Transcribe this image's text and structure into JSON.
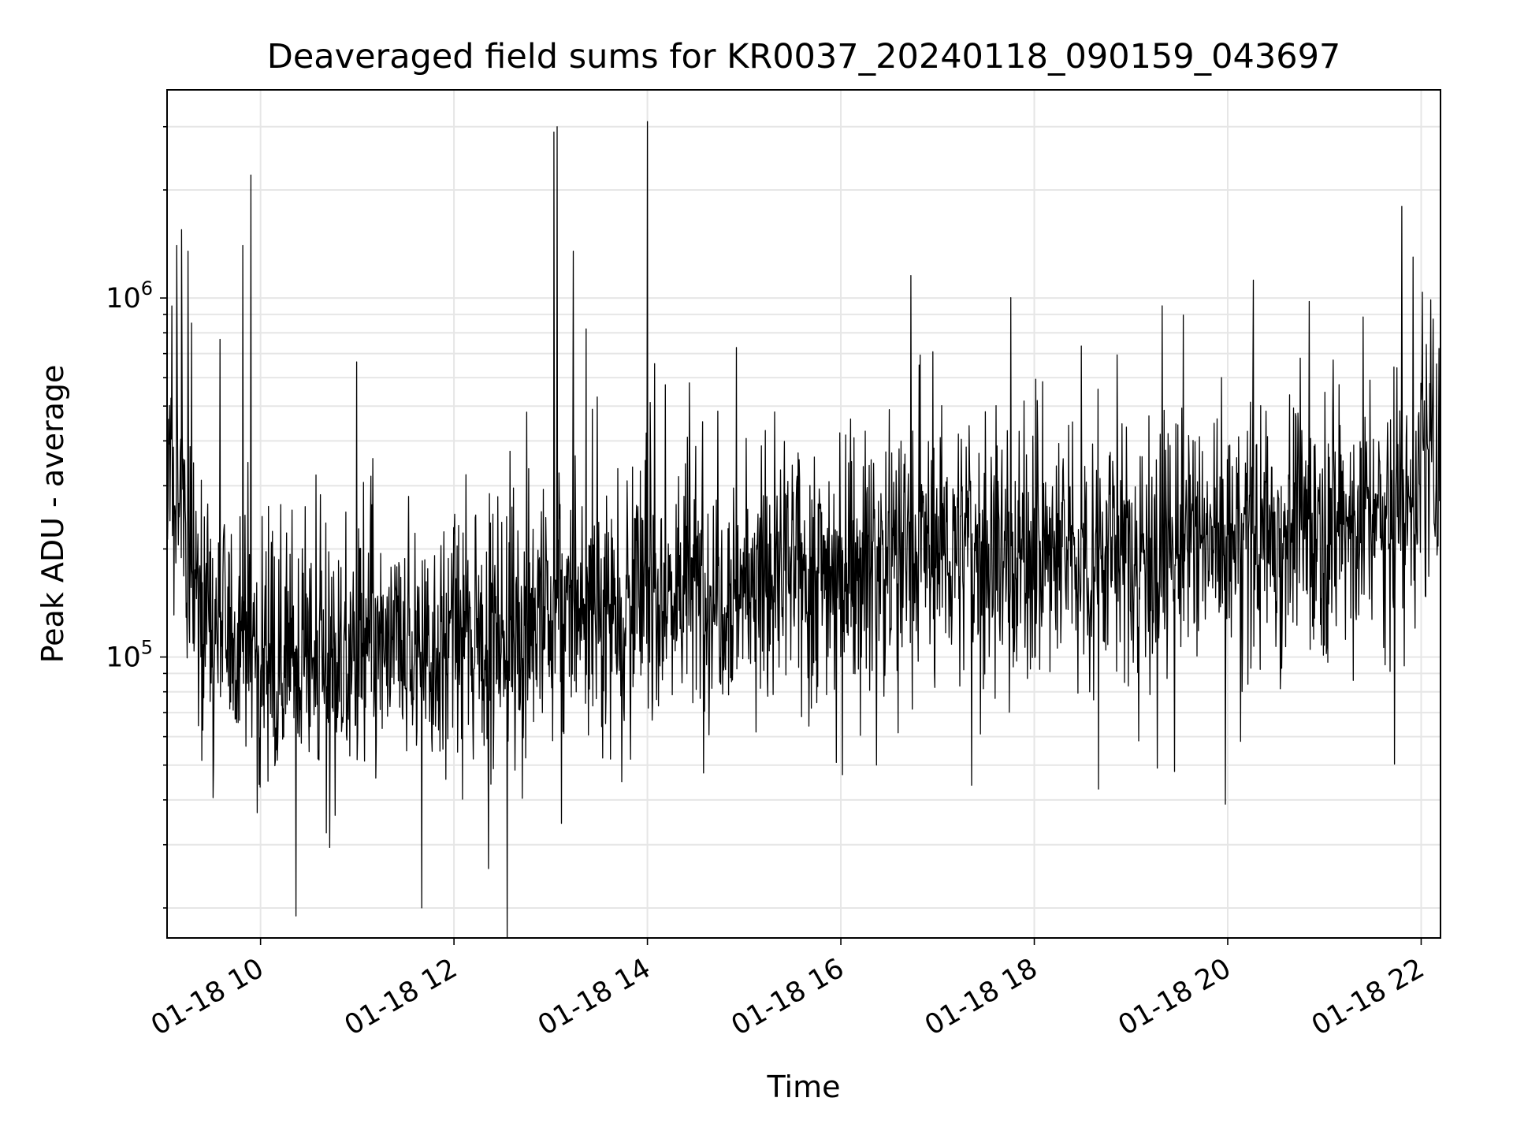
{
  "chart_data": {
    "type": "line",
    "title": "Deaveraged field sums for KR0037_20240118_090159_043697",
    "xlabel": "Time",
    "ylabel": "Peak ADU - average",
    "yscale": "log",
    "xlim": [
      "01-18 09:02",
      "01-18 22:12"
    ],
    "ylim": [
      16500,
      3800000
    ],
    "grid": true,
    "line_color": "#000000",
    "grid_color": "#e6e6e6",
    "x_ticks": [
      {
        "label": "01-18 10",
        "hour": 10
      },
      {
        "label": "01-18 12",
        "hour": 12
      },
      {
        "label": "01-18 14",
        "hour": 14
      },
      {
        "label": "01-18 16",
        "hour": 16
      },
      {
        "label": "01-18 18",
        "hour": 18
      },
      {
        "label": "01-18 20",
        "hour": 20
      },
      {
        "label": "01-18 22",
        "hour": 22
      }
    ],
    "y_ticks": [
      {
        "base": "10",
        "exp": "5",
        "value": 100000
      },
      {
        "base": "10",
        "exp": "6",
        "value": 1000000
      }
    ],
    "trend": [
      {
        "time": "01-18 09:02",
        "value": 320000
      },
      {
        "time": "01-18 09:30",
        "value": 120000
      },
      {
        "time": "01-18 10:30",
        "value": 95000
      },
      {
        "time": "01-18 12:00",
        "value": 110000
      },
      {
        "time": "01-18 13:00",
        "value": 130000
      },
      {
        "time": "01-18 14:00",
        "value": 150000
      },
      {
        "time": "01-18 15:00",
        "value": 160000
      },
      {
        "time": "01-18 16:00",
        "value": 180000
      },
      {
        "time": "01-18 17:00",
        "value": 205000
      },
      {
        "time": "01-18 18:00",
        "value": 190000
      },
      {
        "time": "01-18 19:00",
        "value": 200000
      },
      {
        "time": "01-18 20:00",
        "value": 210000
      },
      {
        "time": "01-18 21:00",
        "value": 235000
      },
      {
        "time": "01-18 21:45",
        "value": 250000
      },
      {
        "time": "01-18 22:12",
        "value": 380000
      }
    ],
    "spikes": [
      {
        "time": "01-18 09:05",
        "value": 950000
      },
      {
        "time": "01-18 09:08",
        "value": 1400000
      },
      {
        "time": "01-18 09:11",
        "value": 1550000
      },
      {
        "time": "01-18 09:15",
        "value": 1350000
      },
      {
        "time": "01-18 09:54",
        "value": 2200000
      },
      {
        "time": "01-18 09:49",
        "value": 1400000
      },
      {
        "time": "01-18 13:02",
        "value": 2900000
      },
      {
        "time": "01-18 13:04",
        "value": 3000000
      },
      {
        "time": "01-18 13:14",
        "value": 1350000
      },
      {
        "time": "01-18 13:22",
        "value": 820000
      },
      {
        "time": "01-18 14:00",
        "value": 3100000
      },
      {
        "time": "01-18 14:26",
        "value": 580000
      },
      {
        "time": "01-18 20:45",
        "value": 680000
      },
      {
        "time": "01-18 21:48",
        "value": 1800000
      },
      {
        "time": "01-18 21:55",
        "value": 1300000
      },
      {
        "time": "01-18 11:40",
        "value": 20000
      },
      {
        "time": "01-18 12:33",
        "value": 16500
      },
      {
        "time": "01-18 10:22",
        "value": 19000
      },
      {
        "time": "01-18 19:27",
        "value": 48000
      },
      {
        "time": "01-18 16:01",
        "value": 47000
      }
    ]
  }
}
